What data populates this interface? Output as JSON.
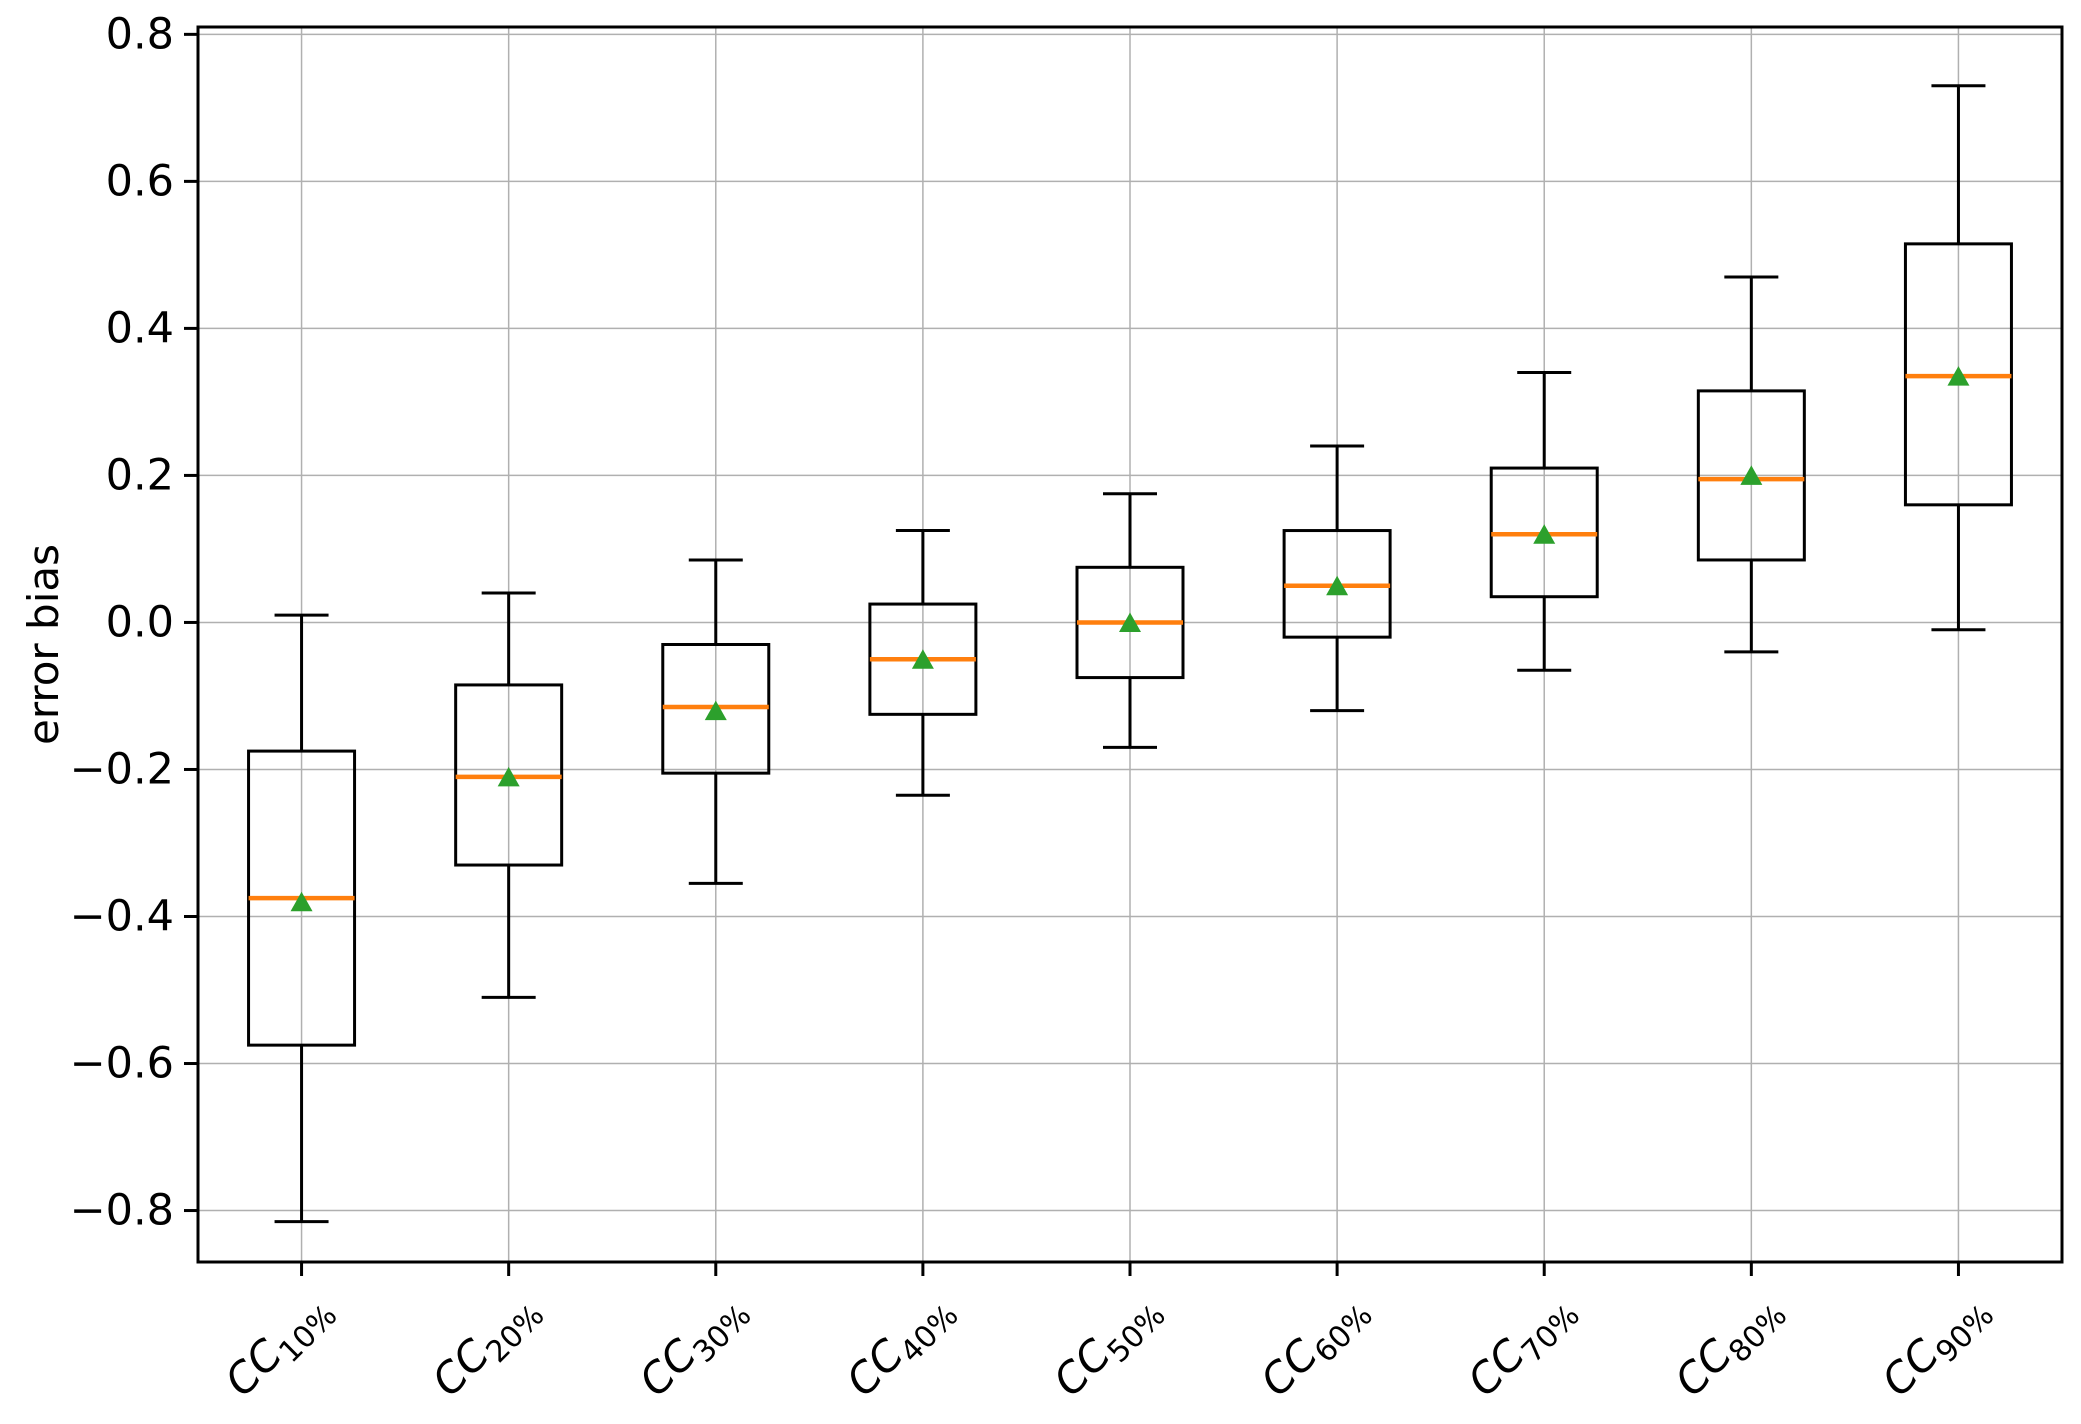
{
  "figure": {
    "background": "#ffffff"
  },
  "chart_data": {
    "type": "boxplot",
    "title": "",
    "xlabel": "",
    "ylabel": "error bias",
    "grid": true,
    "legend": "none",
    "ylim": [
      -0.87,
      0.81
    ],
    "yticks": [
      0.8,
      0.6,
      0.4,
      0.2,
      0.0,
      -0.2,
      -0.4,
      -0.6,
      -0.8
    ],
    "ytick_labels": [
      "0.8",
      "0.6",
      "0.4",
      "0.2",
      "0.0",
      "−0.2",
      "−0.4",
      "−0.6",
      "−0.8"
    ],
    "categories": [
      {
        "base": "CC",
        "sub": "10%",
        "label": "CC10%"
      },
      {
        "base": "CC",
        "sub": "20%",
        "label": "CC20%"
      },
      {
        "base": "CC",
        "sub": "30%",
        "label": "CC30%"
      },
      {
        "base": "CC",
        "sub": "40%",
        "label": "CC40%"
      },
      {
        "base": "CC",
        "sub": "50%",
        "label": "CC50%"
      },
      {
        "base": "CC",
        "sub": "60%",
        "label": "CC60%"
      },
      {
        "base": "CC",
        "sub": "70%",
        "label": "CC70%"
      },
      {
        "base": "CC",
        "sub": "80%",
        "label": "CC80%"
      },
      {
        "base": "CC",
        "sub": "90%",
        "label": "CC90%"
      }
    ],
    "boxes": [
      {
        "label": "CC10%",
        "whislo": -0.815,
        "q1": -0.575,
        "med": -0.375,
        "mean": -0.38,
        "q3": -0.175,
        "whishi": 0.01
      },
      {
        "label": "CC20%",
        "whislo": -0.51,
        "q1": -0.33,
        "med": -0.21,
        "mean": -0.21,
        "q3": -0.085,
        "whishi": 0.04
      },
      {
        "label": "CC30%",
        "whislo": -0.355,
        "q1": -0.205,
        "med": -0.115,
        "mean": -0.12,
        "q3": -0.03,
        "whishi": 0.085
      },
      {
        "label": "CC40%",
        "whislo": -0.235,
        "q1": -0.125,
        "med": -0.05,
        "mean": -0.05,
        "q3": 0.025,
        "whishi": 0.125
      },
      {
        "label": "CC50%",
        "whislo": -0.17,
        "q1": -0.075,
        "med": 0.0,
        "mean": 0.0,
        "q3": 0.075,
        "whishi": 0.175
      },
      {
        "label": "CC60%",
        "whislo": -0.12,
        "q1": -0.02,
        "med": 0.05,
        "mean": 0.05,
        "q3": 0.125,
        "whishi": 0.24
      },
      {
        "label": "CC70%",
        "whislo": -0.065,
        "q1": 0.035,
        "med": 0.12,
        "mean": 0.12,
        "q3": 0.21,
        "whishi": 0.34
      },
      {
        "label": "CC80%",
        "whislo": -0.04,
        "q1": 0.085,
        "med": 0.195,
        "mean": 0.2,
        "q3": 0.315,
        "whishi": 0.47
      },
      {
        "label": "CC90%",
        "whislo": -0.01,
        "q1": 0.16,
        "med": 0.335,
        "mean": 0.335,
        "q3": 0.515,
        "whishi": 0.73
      }
    ],
    "colors": {
      "box": "#000000",
      "whisker": "#000000",
      "median": "#ff7f0e",
      "mean_marker": "#2ca02c",
      "grid": "#b0b0b0",
      "spine": "#000000",
      "background": "#ffffff"
    }
  }
}
